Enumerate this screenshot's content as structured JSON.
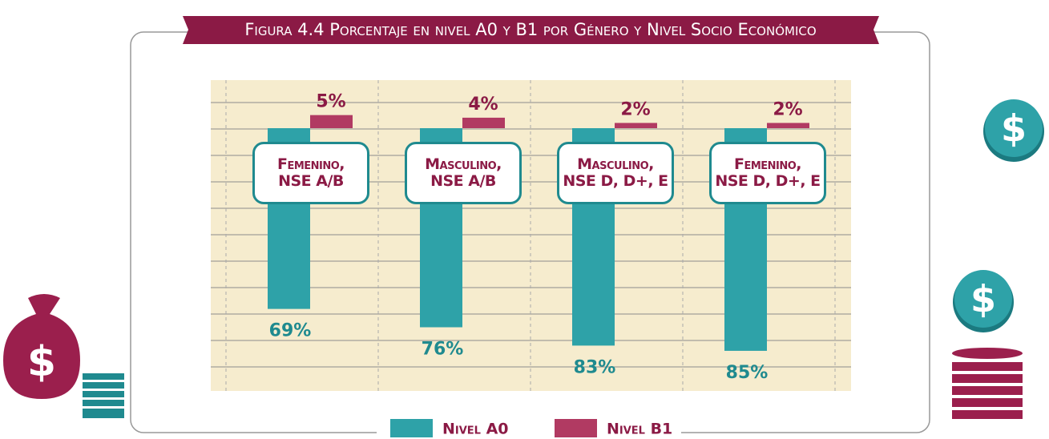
{
  "chart_data": {
    "type": "bar",
    "title": "Figura 4.4 Porcentaje en nivel A0 y B1 por Género y Nivel Socio Económico",
    "categories": [
      "Femenino,\nNSE A/B",
      "Masculino,\nNSE A/B",
      "Masculino,\nNSE D, D+, E",
      "Femenino,\nNSE D, D+, E"
    ],
    "series": [
      {
        "name": "Nivel A0",
        "color": "#2ea2a8",
        "values": [
          69,
          76,
          83,
          85
        ],
        "value_labels": [
          "69%",
          "76%",
          "83%",
          "85%"
        ]
      },
      {
        "name": "Nivel B1",
        "color": "#b13a62",
        "values": [
          5,
          4,
          2,
          2
        ],
        "value_labels": [
          "5%",
          "4%",
          "2%",
          "2%"
        ]
      }
    ],
    "grid": true
  }
}
